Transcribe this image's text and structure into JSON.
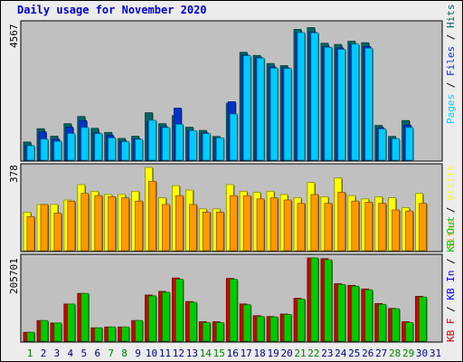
{
  "title": "Daily usage for November 2020",
  "colors": {
    "panel_bg": "#c0c0c0",
    "hits_back": "#006666",
    "files_back": "#0033cc",
    "pages_front": "#00ccff",
    "visits_back": "#ffff00",
    "sites_front": "#ff9900",
    "kbf_back": "#cc0000",
    "kbin_back": "#0000ff",
    "kbout_front": "#00cc00",
    "weekday_label": "#000080",
    "weekend_label": "#008000"
  },
  "chart_data": [
    {
      "type": "bar",
      "name_label": "hits-files-pages",
      "max_label": "4567",
      "legend": {
        "pages": "Pages",
        "files": "Files",
        "hits": "Hits",
        "sep1": " / ",
        "sep2": " / "
      },
      "ylim": [
        0,
        4567
      ],
      "categories": [
        "1",
        "2",
        "3",
        "4",
        "5",
        "6",
        "7",
        "8",
        "9",
        "10",
        "11",
        "12",
        "13",
        "14",
        "15",
        "16",
        "17",
        "18",
        "19",
        "20",
        "21",
        "22",
        "23",
        "24",
        "25",
        "26",
        "27",
        "28",
        "29",
        "30",
        "31"
      ],
      "series": [
        {
          "name": "Hits",
          "values": [
            630,
            1090,
            830,
            1260,
            1510,
            1100,
            960,
            750,
            830,
            1640,
            1260,
            1540,
            1140,
            1030,
            820,
            1970,
            3730,
            3620,
            3340,
            3270,
            4520,
            4580,
            4040,
            4000,
            4110,
            4060,
            1200,
            820,
            1370,
            0,
            0
          ]
        },
        {
          "name": "Files",
          "values": [
            510,
            980,
            720,
            1140,
            1370,
            940,
            850,
            650,
            730,
            1340,
            1150,
            1800,
            1010,
            940,
            770,
            2020,
            3630,
            3550,
            3220,
            3190,
            4410,
            4420,
            3920,
            3880,
            4010,
            3930,
            1120,
            740,
            1210,
            0,
            0
          ]
        },
        {
          "name": "Pages",
          "values": [
            500,
            730,
            650,
            920,
            1130,
            920,
            770,
            640,
            720,
            1380,
            1130,
            1240,
            1020,
            920,
            770,
            1600,
            3610,
            3530,
            3180,
            3170,
            4410,
            4400,
            3900,
            3830,
            4010,
            3870,
            1080,
            740,
            1130,
            0,
            0
          ]
        }
      ]
    },
    {
      "type": "bar",
      "name_label": "visits-sites",
      "max_label": "378",
      "legend": {
        "sites": "Sites",
        "visits": "Visits",
        "sep1": " / "
      },
      "ylim": [
        0,
        378
      ],
      "categories": [
        "1",
        "2",
        "3",
        "4",
        "5",
        "6",
        "7",
        "8",
        "9",
        "10",
        "11",
        "12",
        "13",
        "14",
        "15",
        "16",
        "17",
        "18",
        "19",
        "20",
        "21",
        "22",
        "23",
        "24",
        "25",
        "26",
        "27",
        "28",
        "29",
        "30",
        "31"
      ],
      "series": [
        {
          "name": "Visits",
          "values": [
            175,
            210,
            210,
            230,
            300,
            270,
            255,
            255,
            270,
            378,
            240,
            295,
            275,
            190,
            190,
            300,
            270,
            265,
            270,
            255,
            240,
            310,
            245,
            330,
            250,
            235,
            245,
            240,
            195,
            260,
            0
          ]
        },
        {
          "name": "Sites",
          "values": [
            155,
            210,
            170,
            225,
            260,
            250,
            245,
            240,
            225,
            315,
            210,
            250,
            210,
            175,
            175,
            250,
            250,
            235,
            240,
            230,
            215,
            255,
            215,
            265,
            225,
            220,
            215,
            185,
            180,
            215,
            0
          ]
        }
      ]
    },
    {
      "type": "bar",
      "name_label": "kbytes",
      "max_label": "205701",
      "legend": {
        "kbf": "KB F",
        "kbin": "KB In",
        "kbout": "KB Out",
        "sep1": " / ",
        "sep2": " / "
      },
      "ylim": [
        0,
        205701
      ],
      "categories": [
        "1",
        "2",
        "3",
        "4",
        "5",
        "6",
        "7",
        "8",
        "9",
        "10",
        "11",
        "12",
        "13",
        "14",
        "15",
        "16",
        "17",
        "18",
        "19",
        "20",
        "21",
        "22",
        "23",
        "24",
        "25",
        "26",
        "27",
        "28",
        "29",
        "30",
        "31"
      ],
      "series": [
        {
          "name": "KB F",
          "values": [
            22000,
            51000,
            45000,
            92000,
            118000,
            33000,
            35000,
            35000,
            51000,
            114000,
            123000,
            156000,
            98000,
            48000,
            48000,
            155000,
            92000,
            63000,
            61000,
            67000,
            106000,
            205701,
            204000,
            142000,
            138000,
            129000,
            93000,
            81000,
            48000,
            111000,
            0
          ]
        },
        {
          "name": "KB In",
          "values": [
            0,
            0,
            0,
            0,
            0,
            0,
            0,
            0,
            0,
            0,
            0,
            0,
            0,
            0,
            0,
            0,
            0,
            0,
            0,
            0,
            0,
            0,
            0,
            0,
            0,
            0,
            0,
            0,
            0,
            0,
            0
          ]
        },
        {
          "name": "KB Out",
          "values": [
            22000,
            51000,
            45000,
            92000,
            118000,
            33000,
            35000,
            35000,
            51000,
            112000,
            121000,
            153000,
            96000,
            46000,
            46000,
            153000,
            90000,
            61000,
            60000,
            66000,
            104000,
            205701,
            201000,
            140000,
            136000,
            127000,
            91000,
            80000,
            46000,
            109000,
            0
          ]
        }
      ]
    }
  ],
  "x_axis": {
    "days": [
      "1",
      "2",
      "3",
      "4",
      "5",
      "6",
      "7",
      "8",
      "9",
      "10",
      "11",
      "12",
      "13",
      "14",
      "15",
      "16",
      "17",
      "18",
      "19",
      "20",
      "21",
      "22",
      "23",
      "24",
      "25",
      "26",
      "27",
      "28",
      "29",
      "30",
      "31"
    ],
    "weekend": [
      true,
      false,
      false,
      false,
      false,
      false,
      true,
      true,
      false,
      false,
      false,
      false,
      false,
      true,
      true,
      false,
      false,
      false,
      false,
      false,
      true,
      true,
      false,
      false,
      false,
      false,
      false,
      true,
      true,
      false,
      false
    ]
  }
}
